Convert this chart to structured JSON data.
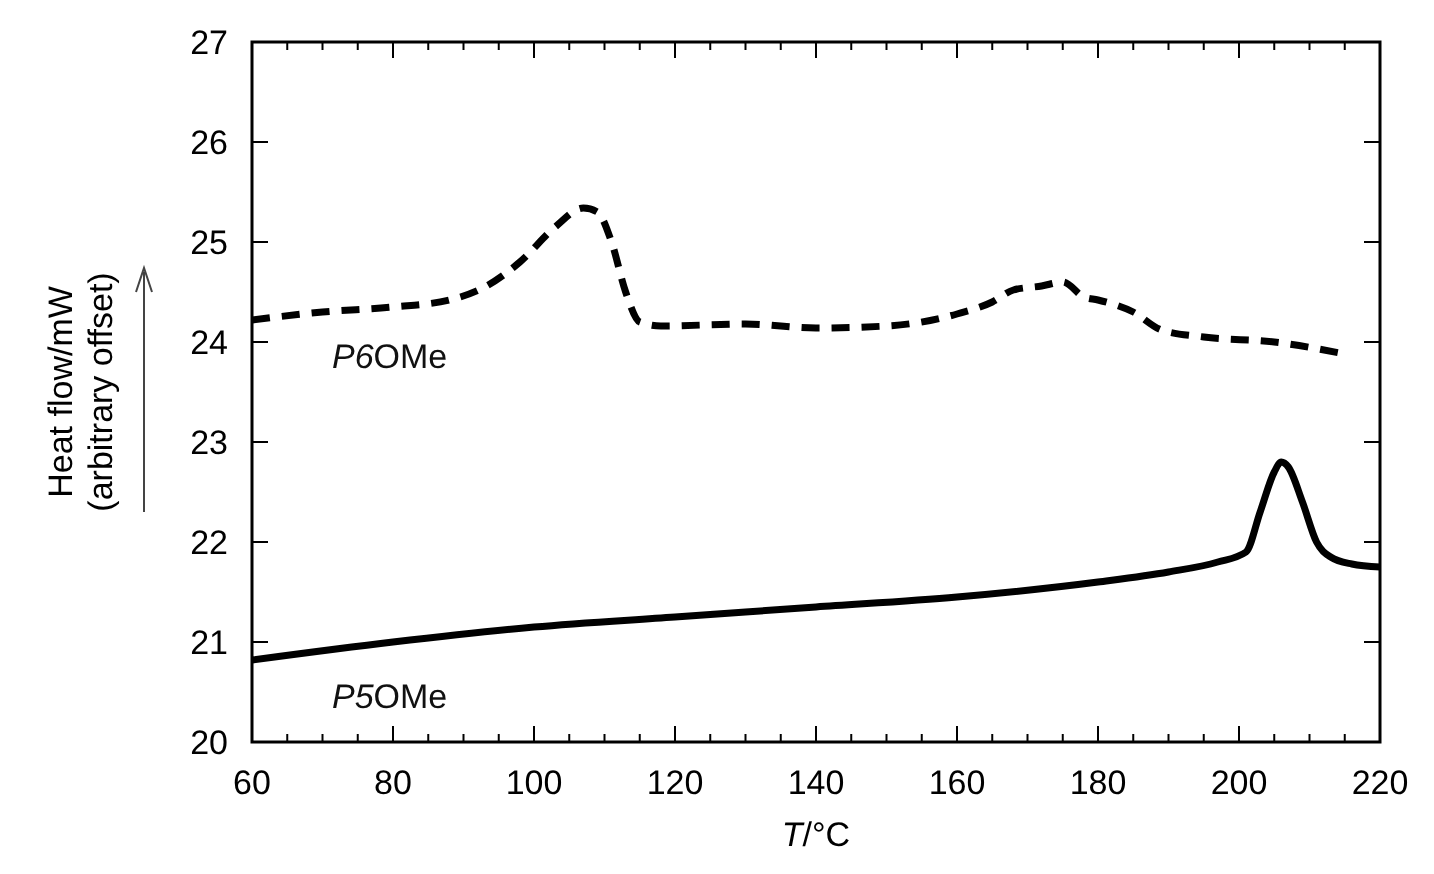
{
  "chart_data": {
    "type": "line",
    "xlabel": "T/°C",
    "ylabel": "Heat flow/mW\n(arbitrary offset)",
    "xlim": [
      60,
      220
    ],
    "xticks": [
      60,
      80,
      100,
      120,
      140,
      160,
      180,
      200,
      220
    ],
    "ylim": [
      20,
      27
    ],
    "yticks": [
      20,
      21,
      22,
      23,
      24,
      25,
      26,
      27
    ],
    "grid": false,
    "series": [
      {
        "name": "P6OMe",
        "color": "#000000",
        "line_style": "dashed",
        "x": [
          60,
          70,
          80,
          88,
          93,
          98,
          103,
          107,
          109,
          111,
          113,
          115,
          118,
          130,
          140,
          150,
          160,
          165,
          168,
          172,
          175,
          178,
          180,
          185,
          189,
          195,
          205,
          215
        ],
        "values": [
          24.22,
          24.3,
          24.35,
          24.42,
          24.55,
          24.8,
          25.15,
          25.34,
          25.3,
          25.0,
          24.5,
          24.2,
          24.16,
          24.18,
          24.14,
          24.16,
          24.28,
          24.4,
          24.52,
          24.56,
          24.6,
          24.45,
          24.42,
          24.3,
          24.12,
          24.05,
          24.0,
          23.88
        ]
      },
      {
        "name": "P5OMe",
        "color": "#000000",
        "line_style": "solid",
        "x": [
          60,
          80,
          100,
          120,
          140,
          160,
          180,
          190,
          197,
          201,
          203,
          205,
          206,
          207,
          209,
          211,
          213,
          216,
          220
        ],
        "values": [
          20.82,
          21.0,
          21.15,
          21.25,
          21.35,
          21.45,
          21.6,
          21.7,
          21.8,
          21.9,
          22.3,
          22.7,
          22.8,
          22.75,
          22.4,
          22.0,
          21.85,
          21.78,
          21.75
        ]
      }
    ]
  }
}
